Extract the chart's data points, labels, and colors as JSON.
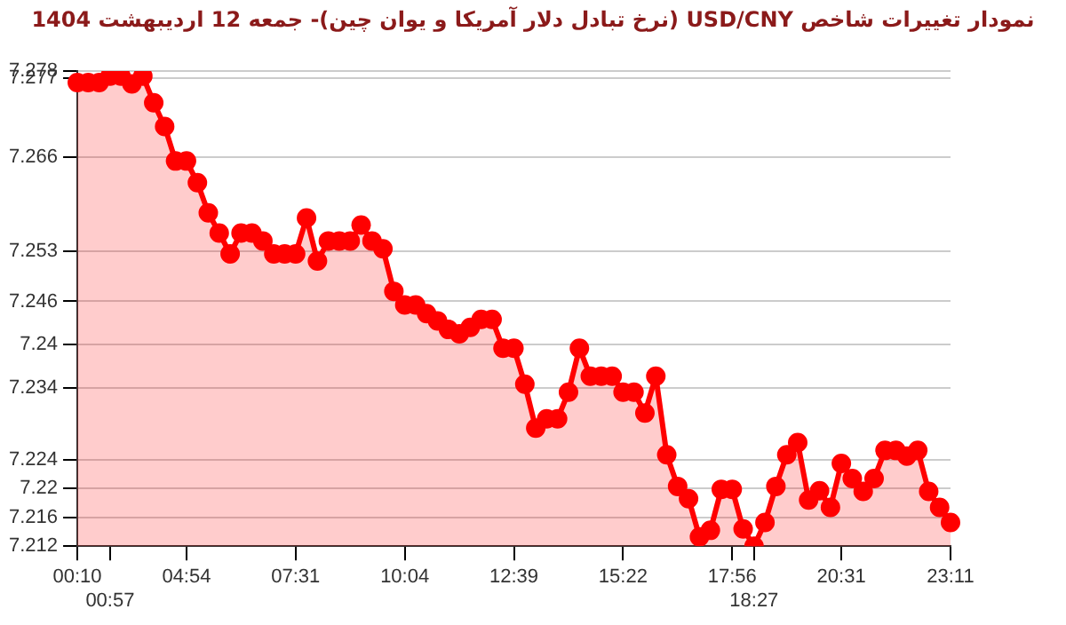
{
  "chart_data": {
    "type": "area",
    "title": "نمودار تغییرات شاخص USD/CNY (نرخ تبادل دلار آمریکا و یوان چین)- جمعه  12 اردیبهشت 1404",
    "categories": [
      "00:10",
      null,
      null,
      "00:57",
      null,
      null,
      null,
      null,
      null,
      null,
      "04:54",
      null,
      null,
      null,
      null,
      null,
      null,
      null,
      null,
      null,
      "07:31",
      null,
      null,
      null,
      null,
      null,
      null,
      null,
      null,
      null,
      "10:04",
      null,
      null,
      null,
      null,
      null,
      null,
      null,
      null,
      null,
      "12:39",
      null,
      null,
      null,
      null,
      null,
      null,
      null,
      null,
      null,
      "15:22",
      null,
      null,
      null,
      null,
      null,
      null,
      null,
      null,
      null,
      "17:56",
      null,
      "18:27",
      null,
      null,
      null,
      null,
      null,
      null,
      null,
      "20:31",
      null,
      null,
      null,
      null,
      null,
      null,
      null,
      null,
      null,
      "23:11"
    ],
    "series": [
      {
        "color": "#ff0000",
        "values": [
          7.2764,
          7.2764,
          7.2764,
          7.2773,
          7.2773,
          7.2762,
          7.2773,
          7.2736,
          7.2703,
          7.2655,
          7.2655,
          7.2625,
          7.2583,
          7.2555,
          7.2526,
          7.2555,
          7.2555,
          7.2544,
          7.2526,
          7.2526,
          7.2526,
          7.2576,
          7.2516,
          7.2544,
          7.2544,
          7.2544,
          7.2566,
          7.2544,
          7.2533,
          7.2474,
          7.2455,
          7.2455,
          7.2443,
          7.2433,
          7.2421,
          7.2415,
          7.2424,
          7.2435,
          7.2435,
          7.2395,
          7.2395,
          7.2345,
          7.2284,
          7.2297,
          7.2297,
          7.2334,
          7.2395,
          7.2356,
          7.2356,
          7.2356,
          7.2334,
          7.2334,
          7.2305,
          7.2356,
          7.2247,
          7.2203,
          7.2186,
          7.2133,
          7.2142,
          7.2199,
          7.2199,
          7.2144,
          7.212,
          7.2153,
          7.2203,
          7.2247,
          7.2264,
          7.2184,
          7.2197,
          7.2174,
          7.2235,
          7.2214,
          7.2196,
          7.2214,
          7.2253,
          7.2253,
          7.2245,
          7.2253,
          7.2196,
          7.2174,
          7.2153
        ]
      }
    ],
    "ylim": [
      7.212,
      7.278
    ],
    "yticks": [
      7.212,
      7.216,
      7.22,
      7.224,
      7.234,
      7.24,
      7.246,
      7.253,
      7.266,
      7.277,
      7.278
    ],
    "grid": "y",
    "legend": false,
    "marker": "circle",
    "line_style": "solid"
  }
}
